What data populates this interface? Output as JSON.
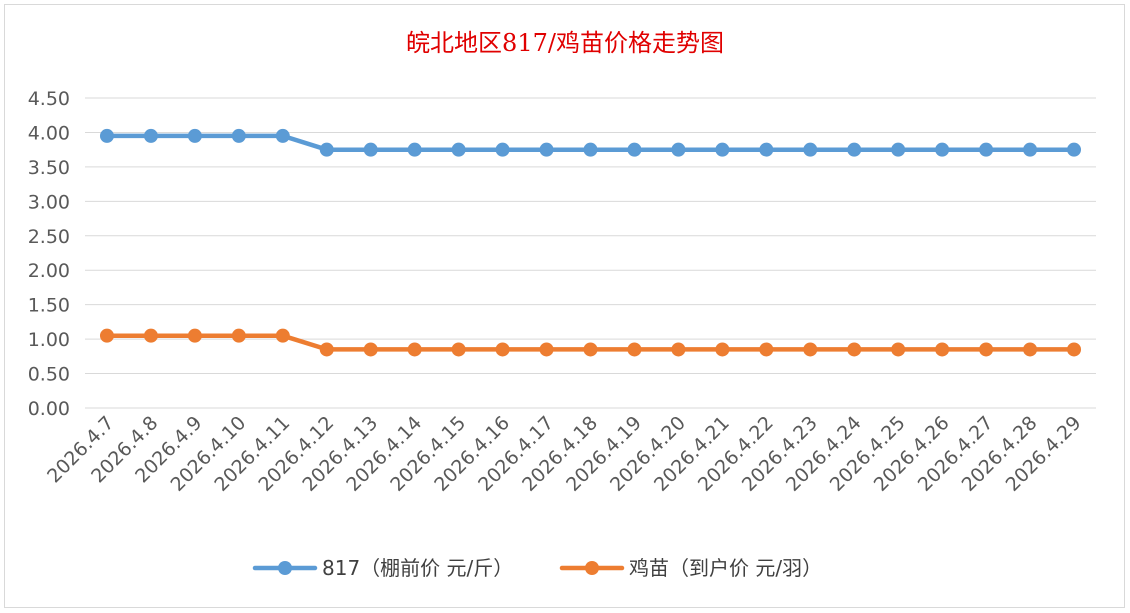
{
  "chart_data": {
    "type": "line",
    "title": "皖北地区817/鸡苗价格走势图",
    "categories": [
      "2026.4.7",
      "2026.4.8",
      "2026.4.9",
      "2026.4.10",
      "2026.4.11",
      "2026.4.12",
      "2026.4.13",
      "2026.4.14",
      "2026.4.15",
      "2026.4.16",
      "2026.4.17",
      "2026.4.18",
      "2026.4.19",
      "2026.4.20",
      "2026.4.21",
      "2026.4.22",
      "2026.4.23",
      "2026.4.24",
      "2026.4.25",
      "2026.4.26",
      "2026.4.27",
      "2026.4.28",
      "2026.4.29"
    ],
    "y_ticks": [
      "0.00",
      "0.50",
      "1.00",
      "1.50",
      "2.00",
      "2.50",
      "3.00",
      "3.50",
      "4.00",
      "4.50"
    ],
    "ylim": [
      0,
      4.5
    ],
    "grid": true,
    "legend_position": "bottom",
    "series": [
      {
        "name": "817（棚前价 元/斤）",
        "color": "#5b9bd5",
        "values": [
          3.95,
          3.95,
          3.95,
          3.95,
          3.95,
          3.75,
          3.75,
          3.75,
          3.75,
          3.75,
          3.75,
          3.75,
          3.75,
          3.75,
          3.75,
          3.75,
          3.75,
          3.75,
          3.75,
          3.75,
          3.75,
          3.75,
          3.75
        ]
      },
      {
        "name": "鸡苗（到户价 元/羽）",
        "color": "#ed7d31",
        "values": [
          1.05,
          1.05,
          1.05,
          1.05,
          1.05,
          0.85,
          0.85,
          0.85,
          0.85,
          0.85,
          0.85,
          0.85,
          0.85,
          0.85,
          0.85,
          0.85,
          0.85,
          0.85,
          0.85,
          0.85,
          0.85,
          0.85,
          0.85
        ]
      }
    ]
  }
}
